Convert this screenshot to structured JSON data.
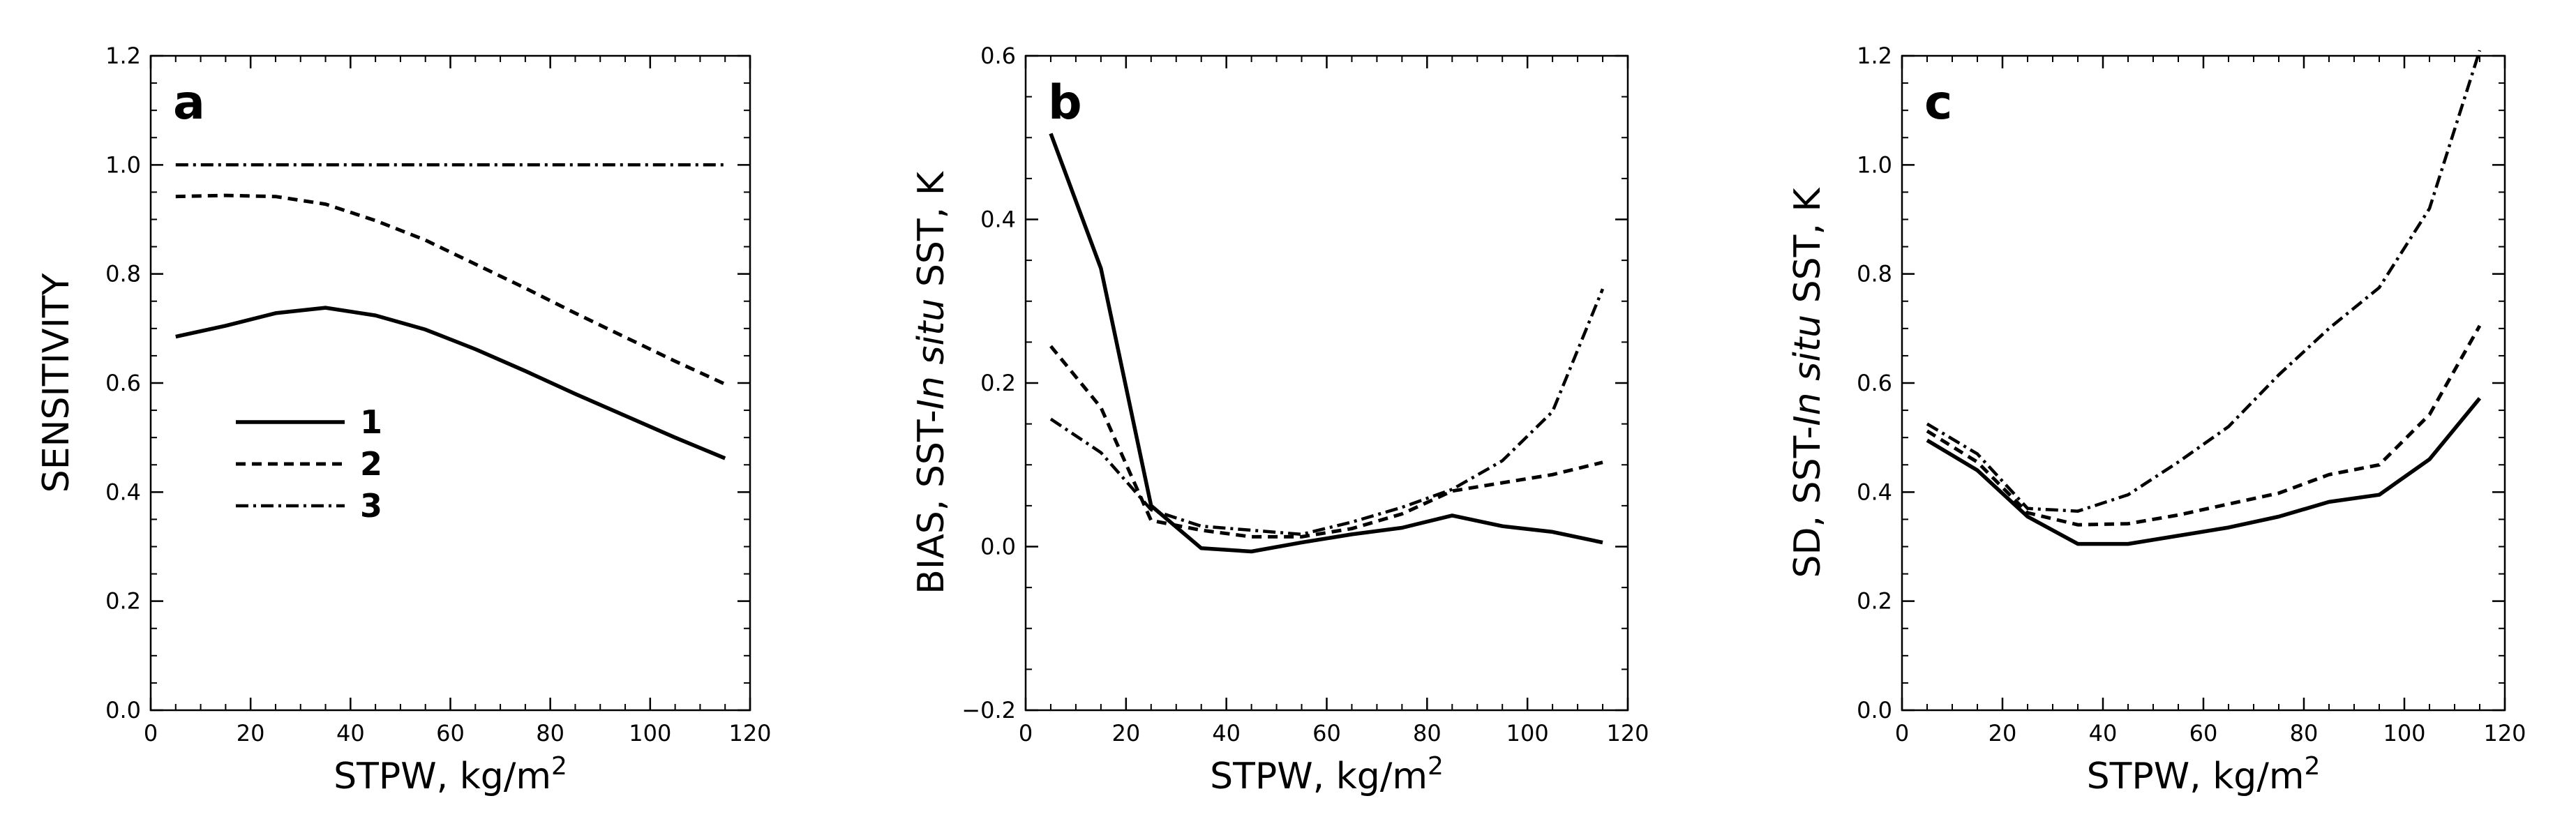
{
  "chart_data": [
    {
      "type": "line",
      "panel_label": "a",
      "title": "",
      "xlabel": "STPW, kg/m",
      "xlabel_sup": "2",
      "ylabel": "SENSITIVITY",
      "ylabel_parts": [],
      "xlim": [
        0,
        120
      ],
      "ylim": [
        0,
        1.2
      ],
      "xticks": [
        0,
        20,
        40,
        60,
        80,
        100,
        120
      ],
      "xtick_labels": [
        "0",
        "20",
        "40",
        "60",
        "80",
        "100",
        "120"
      ],
      "yticks": [
        0,
        0.2,
        0.4,
        0.6,
        0.8,
        1.0,
        1.2
      ],
      "ytick_labels": [
        "0.0",
        "0.2",
        "0.4",
        "0.6",
        "0.8",
        "1.0",
        "1.2"
      ],
      "legend": {
        "placement": "middle-left",
        "entries": [
          "1",
          "2",
          "3"
        ]
      },
      "x": [
        5,
        15,
        25,
        35,
        45,
        55,
        65,
        75,
        85,
        95,
        105,
        115
      ],
      "series": [
        {
          "name": "1",
          "style": "solid",
          "values": [
            0.685,
            0.705,
            0.728,
            0.738,
            0.724,
            0.698,
            0.662,
            0.622,
            0.58,
            0.54,
            0.5,
            0.462
          ]
        },
        {
          "name": "2",
          "style": "dashed",
          "values": [
            0.942,
            0.944,
            0.942,
            0.928,
            0.898,
            0.862,
            0.818,
            0.774,
            0.728,
            0.684,
            0.64,
            0.598
          ]
        },
        {
          "name": "3",
          "style": "dashdot",
          "values": [
            1.0,
            1.0,
            1.0,
            1.0,
            1.0,
            1.0,
            1.0,
            1.0,
            1.0,
            1.0,
            1.0,
            1.0
          ]
        }
      ]
    },
    {
      "type": "line",
      "panel_label": "b",
      "title": "",
      "xlabel": "STPW, kg/m",
      "xlabel_sup": "2",
      "ylabel": "BIAS, SST-In situ SST, K",
      "ylabel_parts": [
        {
          "text": "BIAS, SST-",
          "italic": false
        },
        {
          "text": "In situ",
          "italic": true
        },
        {
          "text": " SST, K",
          "italic": false
        }
      ],
      "xlim": [
        0,
        120
      ],
      "ylim": [
        -0.2,
        0.6
      ],
      "xticks": [
        0,
        20,
        40,
        60,
        80,
        100,
        120
      ],
      "xtick_labels": [
        "0",
        "20",
        "40",
        "60",
        "80",
        "100",
        "120"
      ],
      "yticks": [
        -0.2,
        0.0,
        0.2,
        0.4,
        0.6
      ],
      "ytick_labels": [
        "−0.2",
        "0.0",
        "0.2",
        "0.4",
        "0.6"
      ],
      "legend": null,
      "x": [
        5,
        15,
        25,
        35,
        45,
        55,
        65,
        75,
        85,
        95,
        105,
        115
      ],
      "series": [
        {
          "name": "1",
          "style": "solid",
          "values": [
            0.505,
            0.34,
            0.05,
            -0.002,
            -0.006,
            0.005,
            0.015,
            0.023,
            0.038,
            0.025,
            0.018,
            0.005
          ]
        },
        {
          "name": "2",
          "style": "dashed",
          "values": [
            0.245,
            0.17,
            0.032,
            0.02,
            0.012,
            0.012,
            0.022,
            0.04,
            0.068,
            0.078,
            0.088,
            0.103
          ]
        },
        {
          "name": "3",
          "style": "dashdot",
          "values": [
            0.156,
            0.115,
            0.045,
            0.025,
            0.02,
            0.015,
            0.03,
            0.048,
            0.07,
            0.105,
            0.165,
            0.315
          ]
        }
      ]
    },
    {
      "type": "line",
      "panel_label": "c",
      "title": "",
      "xlabel": "STPW, kg/m",
      "xlabel_sup": "2",
      "ylabel": "SD, SST-In situ SST, K",
      "ylabel_parts": [
        {
          "text": "SD, SST-",
          "italic": false
        },
        {
          "text": "In situ",
          "italic": true
        },
        {
          "text": " SST, K",
          "italic": false
        }
      ],
      "xlim": [
        0,
        120
      ],
      "ylim": [
        0,
        1.2
      ],
      "xticks": [
        0,
        20,
        40,
        60,
        80,
        100,
        120
      ],
      "xtick_labels": [
        "0",
        "20",
        "40",
        "60",
        "80",
        "100",
        "120"
      ],
      "yticks": [
        0,
        0.2,
        0.4,
        0.6,
        0.8,
        1.0,
        1.2
      ],
      "ytick_labels": [
        "0.0",
        "0.2",
        "0.4",
        "0.6",
        "0.8",
        "1.0",
        "1.2"
      ],
      "legend": null,
      "x": [
        5,
        15,
        25,
        35,
        45,
        55,
        65,
        75,
        85,
        95,
        105,
        115
      ],
      "series": [
        {
          "name": "1",
          "style": "solid",
          "values": [
            0.495,
            0.44,
            0.355,
            0.305,
            0.305,
            0.32,
            0.335,
            0.355,
            0.382,
            0.395,
            0.46,
            0.572
          ]
        },
        {
          "name": "2",
          "style": "dashed",
          "values": [
            0.512,
            0.455,
            0.362,
            0.34,
            0.342,
            0.358,
            0.378,
            0.398,
            0.432,
            0.45,
            0.542,
            0.705
          ]
        },
        {
          "name": "3",
          "style": "dashdot",
          "values": [
            0.525,
            0.47,
            0.37,
            0.365,
            0.395,
            0.455,
            0.52,
            0.615,
            0.7,
            0.775,
            0.92,
            1.21
          ]
        }
      ]
    }
  ]
}
